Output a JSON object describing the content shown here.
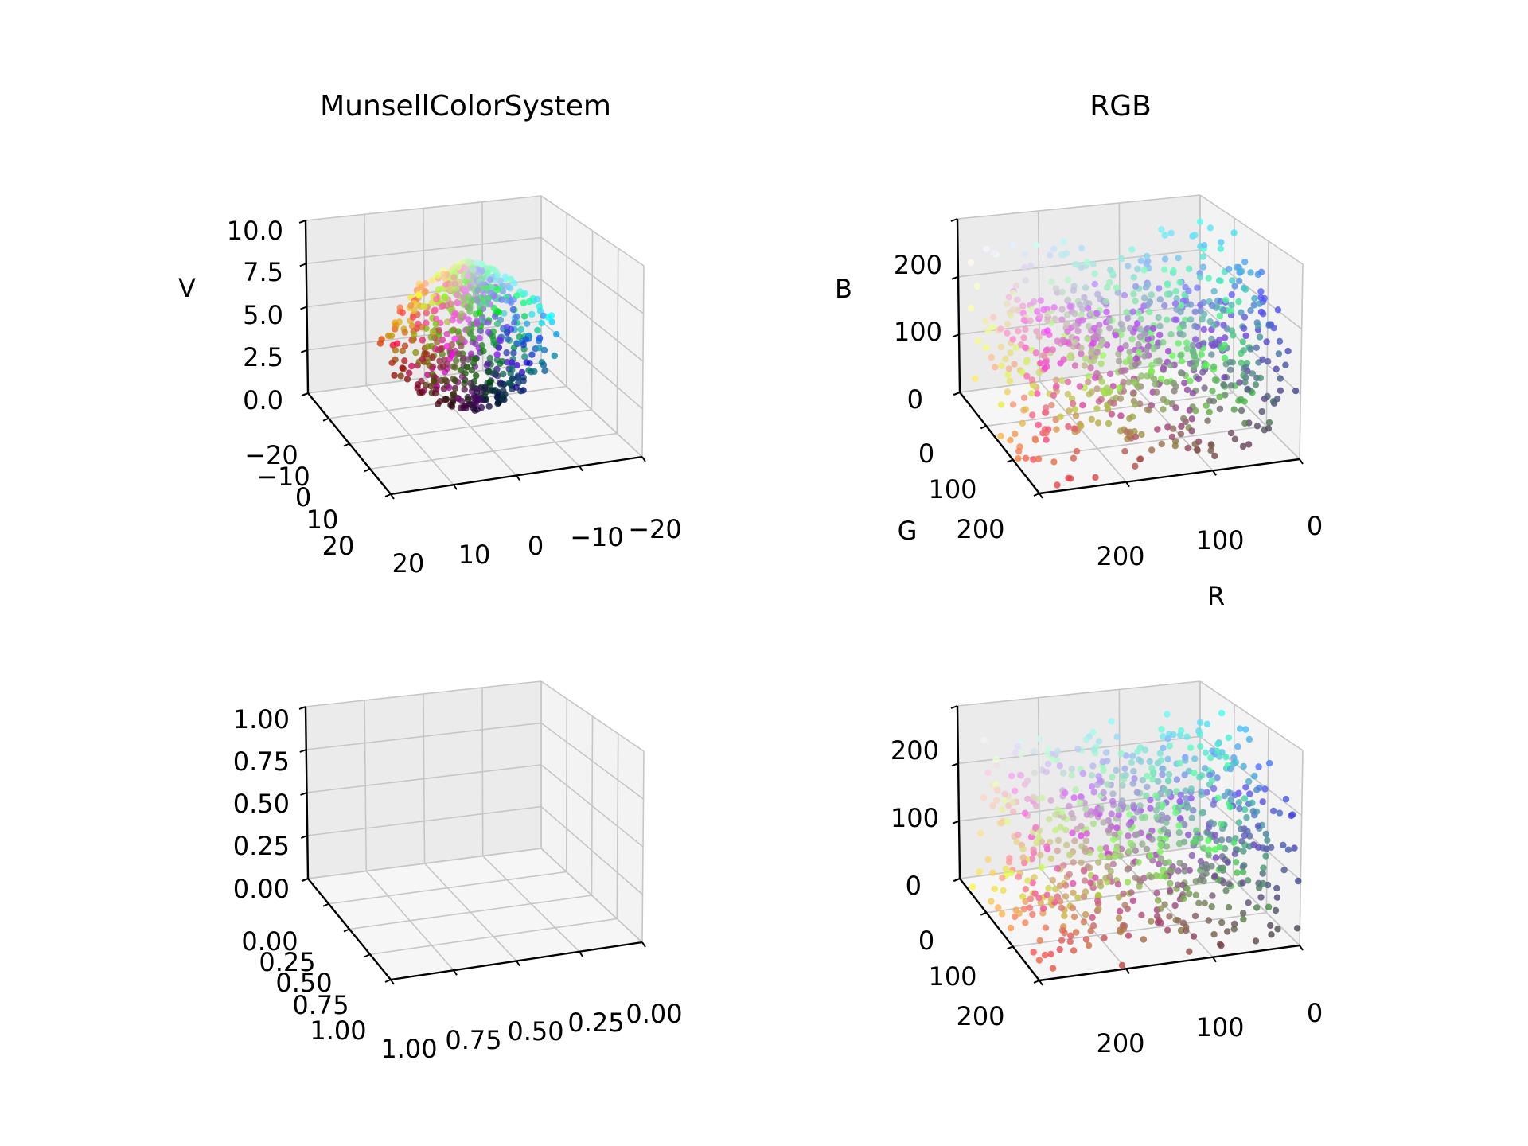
{
  "figure": {
    "background": "#ffffff",
    "pane_colors": {
      "left": "#ebebeb",
      "right": "#f3f3f3",
      "floor": "#f6f6f6"
    },
    "grid_color": "#c6c6c6",
    "axis_color": "#000000"
  },
  "chart_data": [
    {
      "id": "munsell",
      "type": "scatter3d",
      "title": "MunsellColorSystem",
      "xlabel": "",
      "ylabel": "",
      "zlabel": "V",
      "xlim": [
        -25,
        25
      ],
      "ylim": [
        -25,
        25
      ],
      "zlim": [
        0,
        10
      ],
      "ticks": {
        "x": [
          "20",
          "10",
          "0",
          "−10",
          "−20"
        ],
        "y": [
          "−20",
          "−10",
          "0",
          "10",
          "20"
        ],
        "z": [
          "0.0",
          "2.5",
          "5.0",
          "7.5",
          "10.0"
        ]
      },
      "grid": true,
      "points_description": "Munsell renotation samples (x = chroma·cos(hue), y = chroma·sin(hue), z = value V), colored by their sRGB color"
    },
    {
      "id": "rgb",
      "type": "scatter3d",
      "title": "RGB",
      "xlabel": "R",
      "ylabel": "G",
      "zlabel": "B",
      "xlim": [
        0,
        255
      ],
      "ylim": [
        0,
        255
      ],
      "zlim": [
        0,
        255
      ],
      "ticks": {
        "x": [
          "200",
          "100",
          "0"
        ],
        "y": [
          "0",
          "100",
          "200"
        ],
        "z": [
          "0",
          "100",
          "200"
        ]
      },
      "grid": true,
      "points_description": "Munsell samples converted to RGB [0-255], colored by their own color"
    },
    {
      "id": "empty",
      "type": "scatter3d",
      "title": "",
      "xlabel": "",
      "ylabel": "",
      "zlabel": "",
      "xlim": [
        0,
        1
      ],
      "ylim": [
        0,
        1
      ],
      "zlim": [
        0,
        1
      ],
      "ticks": {
        "x": [
          "1.00",
          "0.75",
          "0.50",
          "0.25",
          "0.00"
        ],
        "y": [
          "0.00",
          "0.25",
          "0.50",
          "0.75",
          "1.00"
        ],
        "z": [
          "0.00",
          "0.25",
          "0.50",
          "0.75",
          "1.00"
        ]
      },
      "grid": true,
      "points_description": "no data"
    },
    {
      "id": "rgb2",
      "type": "scatter3d",
      "title": "",
      "xlabel": "",
      "ylabel": "",
      "zlabel": "",
      "xlim": [
        0,
        255
      ],
      "ylim": [
        0,
        255
      ],
      "zlim": [
        0,
        255
      ],
      "ticks": {
        "x": [
          "200",
          "100",
          "0"
        ],
        "y": [
          "0",
          "100",
          "200"
        ],
        "z": [
          "0",
          "100",
          "200"
        ]
      },
      "grid": true,
      "points_description": "Munsell samples in RGB [0-255] (second variant), colored by their own color"
    }
  ]
}
